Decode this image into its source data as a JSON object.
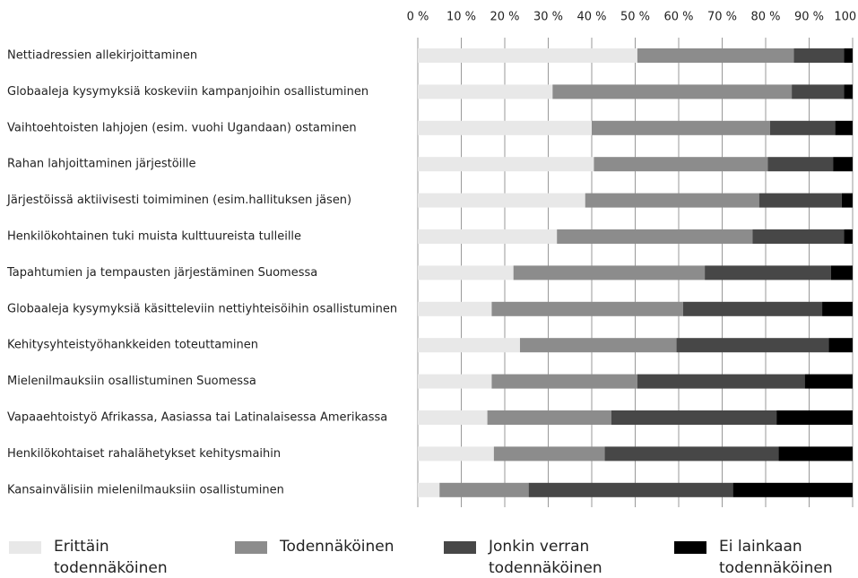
{
  "chart_data": {
    "type": "stacked-bar",
    "orientation": "horizontal",
    "categories": [
      "Nettiadressien allekirjoittaminen",
      "Globaaleja kysymyksiä koskeviin kampanjoihin osallistuminen",
      "Vaihtoehtoisten lahjojen (esim. vuohi Ugandaan) ostaminen",
      "Rahan lahjoittaminen järjestöille",
      "Järjestöissä aktiivisesti toimiminen (esim.hallituksen jäsen)",
      "Henkilökohtainen tuki muista kulttuureista tulleille",
      "Tapahtumien ja tempausten järjestäminen Suomessa",
      "Globaaleja kysymyksiä käsitteleviin nettiyhteisöihin osallistuminen",
      "Kehitysyhteistyöhankkeiden toteuttaminen",
      "Mielenilmauksiin osallistuminen Suomessa",
      "Vapaaehtoistyö Afrikassa, Aasiassa tai Latinalaisessa Amerikassa",
      "Henkilökohtaiset rahalähetykset kehitysmaihin",
      "Kansainvälisiin mielenilmauksiin osallistuminen"
    ],
    "series": [
      {
        "name": "Erittäin todennäköinen",
        "color": "#e8e8e8",
        "values": [
          50.5,
          31,
          40,
          40.5,
          38.5,
          32,
          22,
          17,
          23.5,
          17,
          16,
          17.5,
          5
        ]
      },
      {
        "name": "Todennäköinen",
        "color": "#8c8c8c",
        "values": [
          36,
          55,
          41,
          40,
          40,
          45,
          44,
          44,
          36,
          33.5,
          28.5,
          25.5,
          20.5
        ]
      },
      {
        "name": "Jonkin verran todennäköinen",
        "color": "#474747",
        "values": [
          11.5,
          12,
          15,
          15,
          19,
          21,
          29,
          32,
          35,
          38.5,
          38,
          40,
          47
        ]
      },
      {
        "name": "Ei lainkaan todennäköinen",
        "color": "#000000",
        "values": [
          2,
          2,
          4,
          4.5,
          2.5,
          2,
          5,
          7,
          5.5,
          11,
          17.5,
          17,
          27.5
        ]
      }
    ],
    "xlim": [
      0,
      100
    ],
    "xticks": [
      {
        "value": 0,
        "label": "0 %"
      },
      {
        "value": 10,
        "label": "10 %"
      },
      {
        "value": 20,
        "label": "20 %"
      },
      {
        "value": 30,
        "label": "30 %"
      },
      {
        "value": 40,
        "label": "40 %"
      },
      {
        "value": 50,
        "label": "50 %"
      },
      {
        "value": 60,
        "label": "60 %"
      },
      {
        "value": 70,
        "label": "70 %"
      },
      {
        "value": 80,
        "label": "80 %"
      },
      {
        "value": 90,
        "label": "90 %"
      },
      {
        "value": 100,
        "label": "100 %"
      }
    ],
    "grid": true,
    "legend": "bottom"
  }
}
